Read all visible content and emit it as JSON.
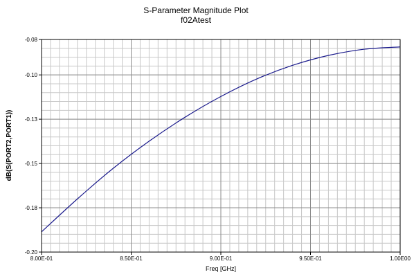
{
  "chart_data": {
    "type": "line",
    "title": "S-Parameter Magnitude Plot",
    "subtitle": "f02Atest",
    "xlabel": "Freq [GHz]",
    "ylabel": "dB(S(PORT2,PORT1))",
    "xlim": [
      0.8,
      1.0
    ],
    "ylim": [
      -0.2,
      -0.08
    ],
    "x_ticks": [
      {
        "value": 0.8,
        "label": "8.00E-01"
      },
      {
        "value": 0.85,
        "label": "8.50E-01"
      },
      {
        "value": 0.9,
        "label": "9.00E-01"
      },
      {
        "value": 0.95,
        "label": "9.50E-01"
      },
      {
        "value": 1.0,
        "label": "1.00E00"
      }
    ],
    "y_ticks": [
      {
        "value": -0.08,
        "label": "-0.08"
      },
      {
        "value": -0.1,
        "label": "-0.10"
      },
      {
        "value": -0.125,
        "label": "-0.13"
      },
      {
        "value": -0.15,
        "label": "-0.15"
      },
      {
        "value": -0.175,
        "label": "-0.18"
      },
      {
        "value": -0.2,
        "label": "-0.20"
      }
    ],
    "grid": true,
    "legend": "none",
    "line_color": "#1a1a8c",
    "series": [
      {
        "x": [
          0.8,
          0.82,
          0.84,
          0.86,
          0.88,
          0.9,
          0.92,
          0.94,
          0.96,
          0.98,
          1.0
        ],
        "values": [
          -0.1886,
          -0.17,
          -0.1527,
          -0.1374,
          -0.1239,
          -0.1122,
          -0.1023,
          -0.0946,
          -0.089,
          -0.0855,
          -0.0842
        ]
      }
    ]
  }
}
